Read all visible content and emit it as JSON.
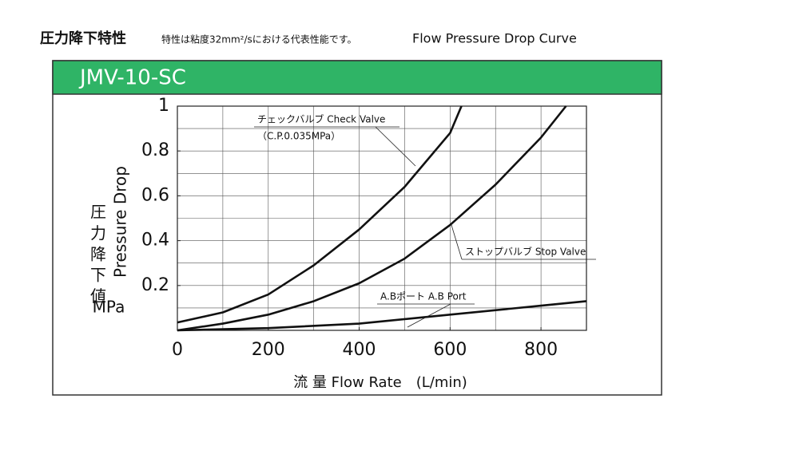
{
  "header": {
    "title": "圧力降下特性",
    "note": "特性は粘度32mm²/sにおける代表性能です。",
    "subtitle": "Flow Pressure Drop Curve"
  },
  "chart_data": {
    "type": "line",
    "title": "JMV-10-SC",
    "y_label_jp": "圧 力 降 下 値",
    "y_label": "Pressure Drop",
    "y_unit": "MPa",
    "x_label": "流 量 Flow Rate　(L/min)",
    "xlim": [
      0,
      900
    ],
    "ylim": [
      0,
      1
    ],
    "xticks": [
      0,
      200,
      400,
      600,
      800
    ],
    "yticks": [
      0.2,
      0.4,
      0.6,
      0.8,
      1
    ],
    "xgrid": [
      100,
      200,
      300,
      400,
      500,
      600,
      700,
      800
    ],
    "ygrid": [
      0.1,
      0.2,
      0.3,
      0.4,
      0.5,
      0.6,
      0.7,
      0.8,
      0.9
    ],
    "grid": true,
    "series": [
      {
        "name": "チェックバルブ  Check Valve",
        "note": "（C.P.0.035MPa）",
        "color": "#111111",
        "x": [
          0,
          100,
          200,
          300,
          400,
          500,
          600,
          625
        ],
        "values": [
          0.035,
          0.08,
          0.16,
          0.29,
          0.45,
          0.64,
          0.88,
          1.0
        ]
      },
      {
        "name": "ストップバルブ  Stop Valve",
        "color": "#111111",
        "x": [
          0,
          100,
          200,
          300,
          400,
          500,
          600,
          700,
          800,
          855
        ],
        "values": [
          0,
          0.03,
          0.07,
          0.13,
          0.21,
          0.32,
          0.47,
          0.65,
          0.86,
          1.0
        ]
      },
      {
        "name": "A.Bポート  A.B Port",
        "color": "#111111",
        "x": [
          0,
          200,
          400,
          600,
          800,
          900
        ],
        "values": [
          0,
          0.01,
          0.03,
          0.07,
          0.11,
          0.13
        ]
      }
    ]
  }
}
